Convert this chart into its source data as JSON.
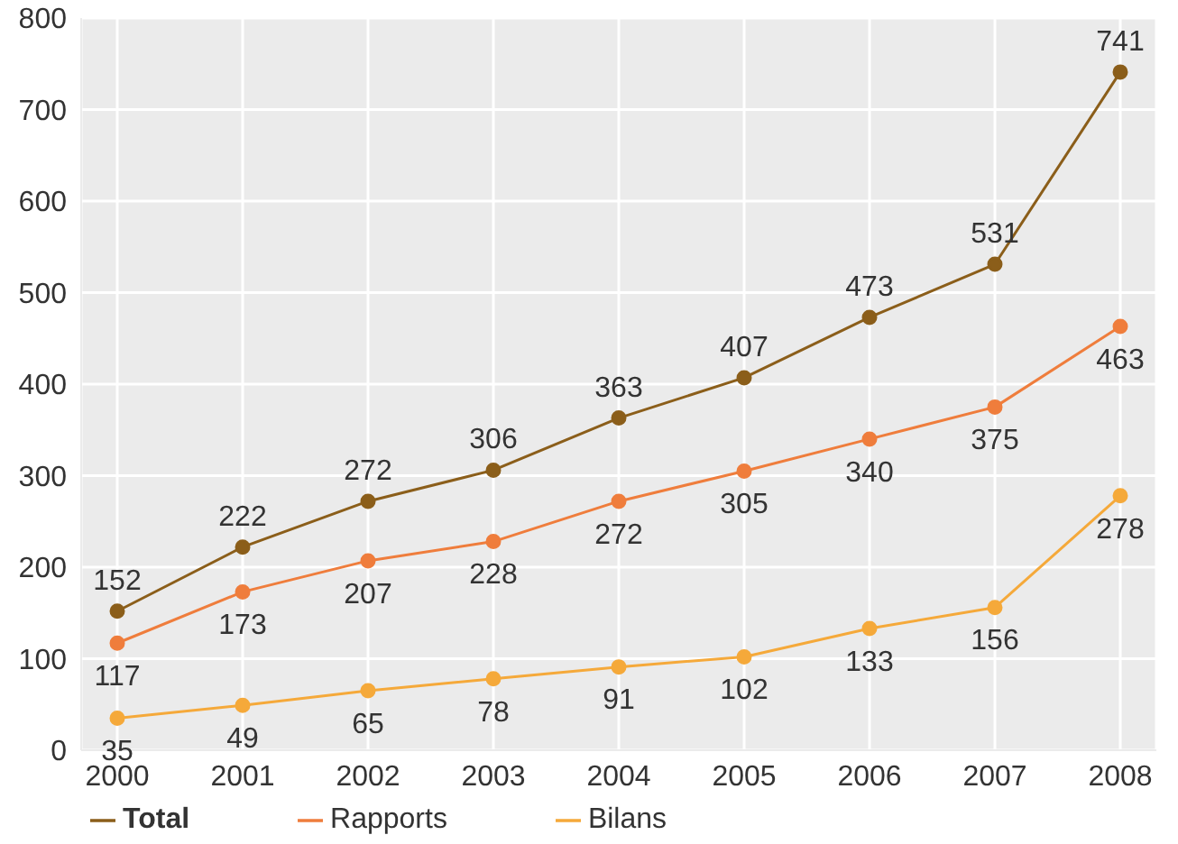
{
  "chart_data": {
    "type": "line",
    "categories": [
      "2000",
      "2001",
      "2002",
      "2003",
      "2004",
      "2005",
      "2006",
      "2007",
      "2008"
    ],
    "series": [
      {
        "name": "Total",
        "color": "#8b5e1a",
        "values": [
          152,
          222,
          272,
          306,
          363,
          407,
          473,
          531,
          741
        ]
      },
      {
        "name": "Rapports",
        "color": "#ef7d3c",
        "values": [
          117,
          173,
          207,
          228,
          272,
          305,
          340,
          375,
          463
        ]
      },
      {
        "name": "Bilans",
        "color": "#f5a93a",
        "values": [
          35,
          49,
          65,
          78,
          91,
          102,
          133,
          156,
          278
        ]
      }
    ],
    "ylim": [
      0,
      800
    ],
    "yticks": [
      0,
      100,
      200,
      300,
      400,
      500,
      600,
      700,
      800
    ],
    "grid": true,
    "legend": "bottom",
    "marker": "circle",
    "line_style": "solid",
    "data_labels": true
  }
}
